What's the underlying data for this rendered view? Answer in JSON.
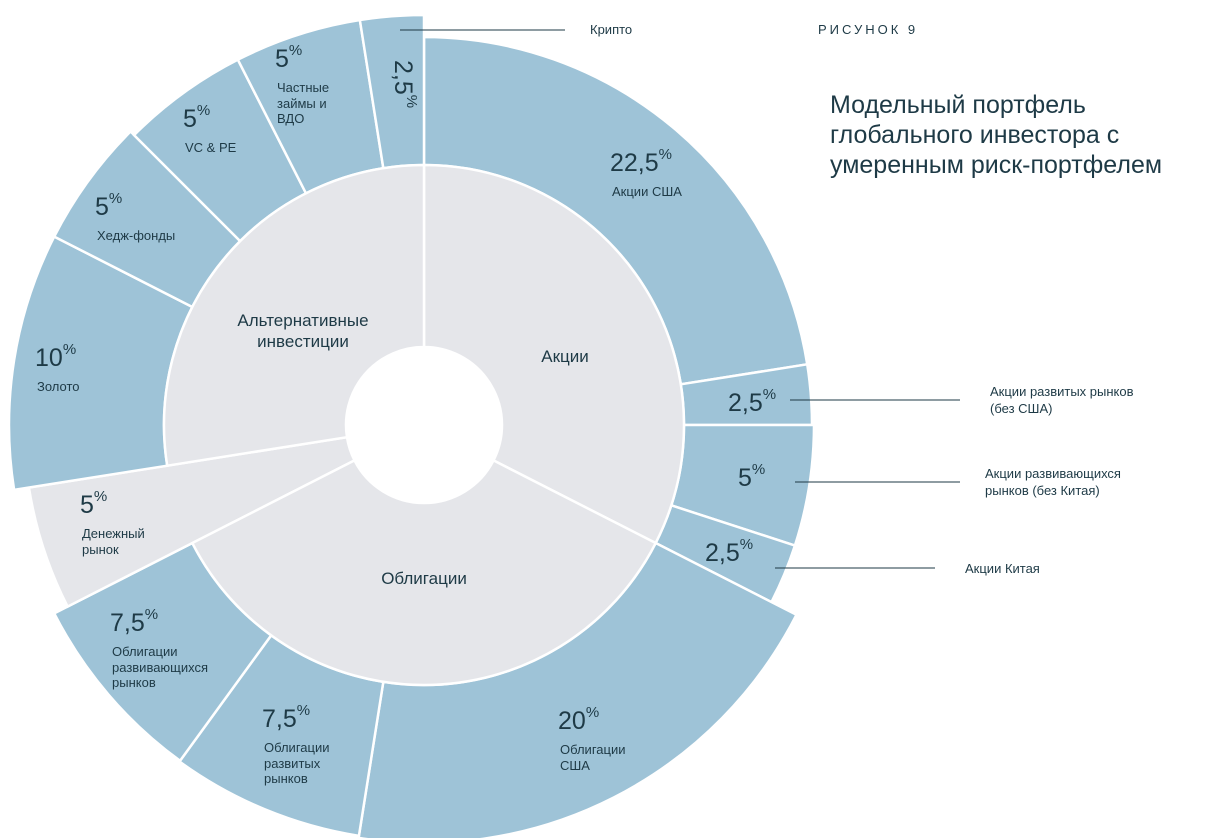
{
  "chart_data": {
    "type": "sunburst",
    "figure_label": "РИСУНОК 9",
    "title": "Модельный портфель глобального инвестора с умеренным риск-портфелем",
    "unit": "%",
    "outer_color": "#9ec3d7",
    "inner_color": "#e5e6ea",
    "groups": [
      "Акции",
      "Облигации",
      "Альтернативные инвестиции"
    ],
    "segments": [
      "Акции США",
      "Акции развитых рынков (без США)",
      "Акции развивающихся рынков (без Китая)",
      "Акции Китая",
      "Облигации США",
      "Облигации развитых рынков",
      "Облигации развивающихся рынков",
      "Денежный рынок",
      "Золото",
      "Хедж-фонды",
      "VC & PE",
      "Частные займы и ВДО",
      "Крипто"
    ],
    "segment_groups": [
      0,
      0,
      0,
      0,
      1,
      1,
      1,
      null,
      2,
      2,
      2,
      2,
      2
    ],
    "values": [
      22.5,
      2.5,
      5,
      2.5,
      20,
      7.5,
      7.5,
      5,
      10,
      5,
      5,
      5,
      2.5
    ],
    "value_labels": [
      "22,5",
      "2,5",
      "5",
      "2,5",
      "20",
      "7,5",
      "7,5",
      "5",
      "10",
      "5",
      "5",
      "5",
      "2,5"
    ]
  }
}
